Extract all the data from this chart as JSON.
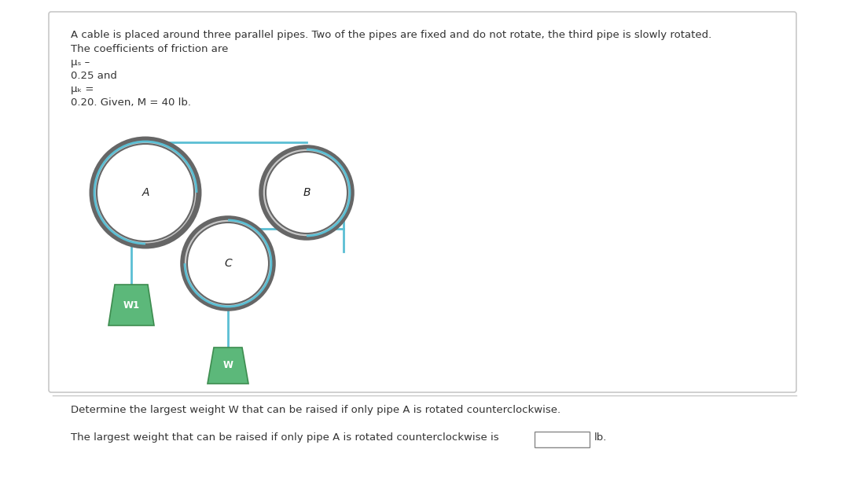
{
  "bg_color": "#ffffff",
  "box_edge_color": "#c8c8c8",
  "text_color": "#333333",
  "pipe_edge_color": "#666666",
  "pipe_fill_color": "#ffffff",
  "pipe_ring_color": "#888888",
  "cable_color": "#5bbfd4",
  "weight_fill": "#5cb87a",
  "weight_edge": "#3d8c4f",
  "title_line1": "A cable is placed around three parallel pipes. Two of the pipes are fixed and do not rotate, the third pipe is slowly rotated.",
  "title_line2": "The coefficients of friction are",
  "mu_s_label": "μₛ –",
  "mu_s_value": "0.25 and",
  "mu_k_label": "μₖ =",
  "mu_k_value": "0.20. Given, M = 40 lb.",
  "question": "Determine the largest weight W that can be raised if only pipe A is rotated counterclockwise.",
  "answer_prefix": "The largest weight that can be raised if only pipe A is rotated counterclockwise is",
  "answer_suffix": "lb.",
  "pipe_A_label": "A",
  "pipe_B_label": "B",
  "pipe_C_label": "C",
  "weight_W1_label": "W1",
  "weight_W_label": "W"
}
